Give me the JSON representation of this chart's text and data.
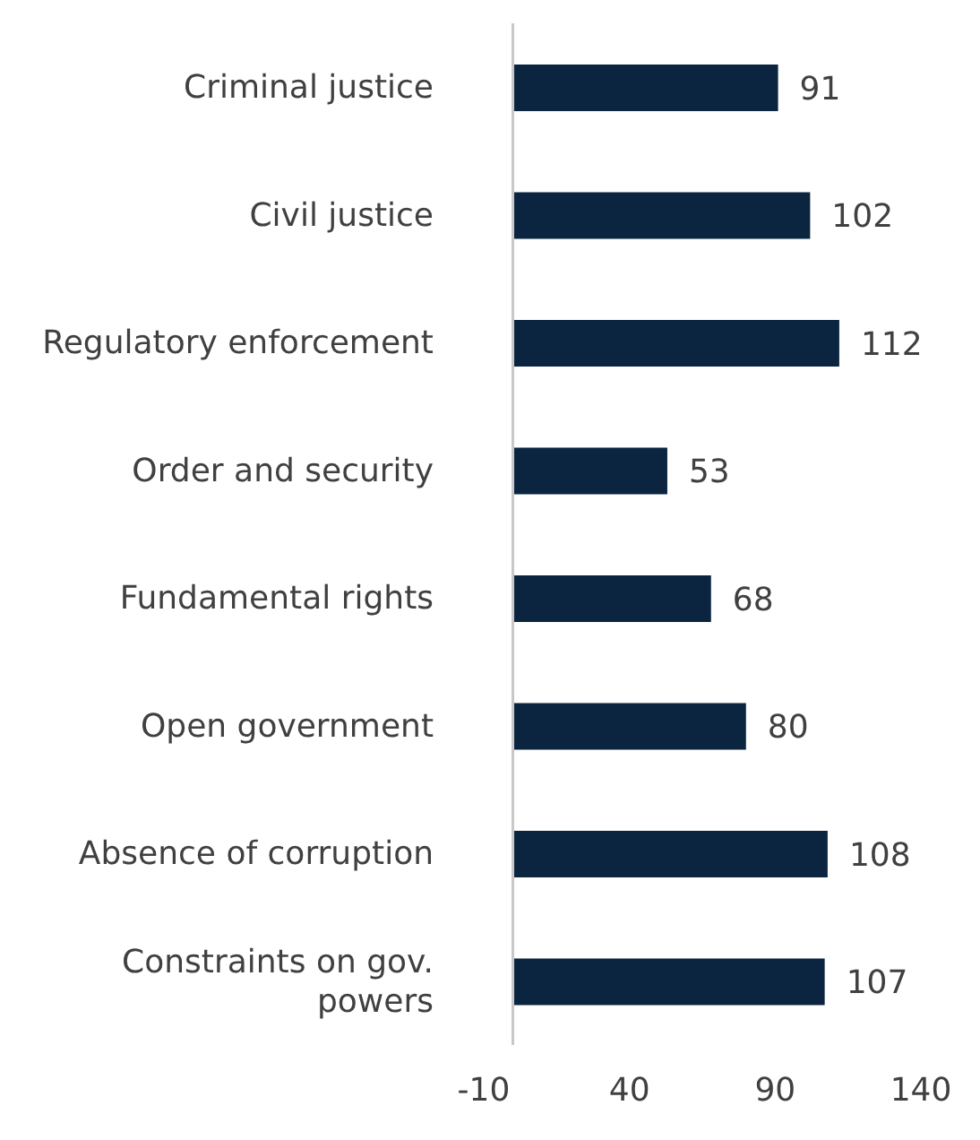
{
  "chart_data": {
    "type": "bar",
    "orientation": "horizontal",
    "categories": [
      "Criminal justice",
      "Civil justice",
      "Regulatory enforcement",
      "Order and security",
      "Fundamental rights",
      "Open government",
      "Absence of corruption",
      "Constraints on gov. powers"
    ],
    "values": [
      91,
      102,
      112,
      53,
      68,
      80,
      108,
      107
    ],
    "color": "#0b2540",
    "xlim": [
      -10,
      140
    ],
    "xticks": [
      -10,
      40,
      90,
      140
    ],
    "data_labels": true
  }
}
